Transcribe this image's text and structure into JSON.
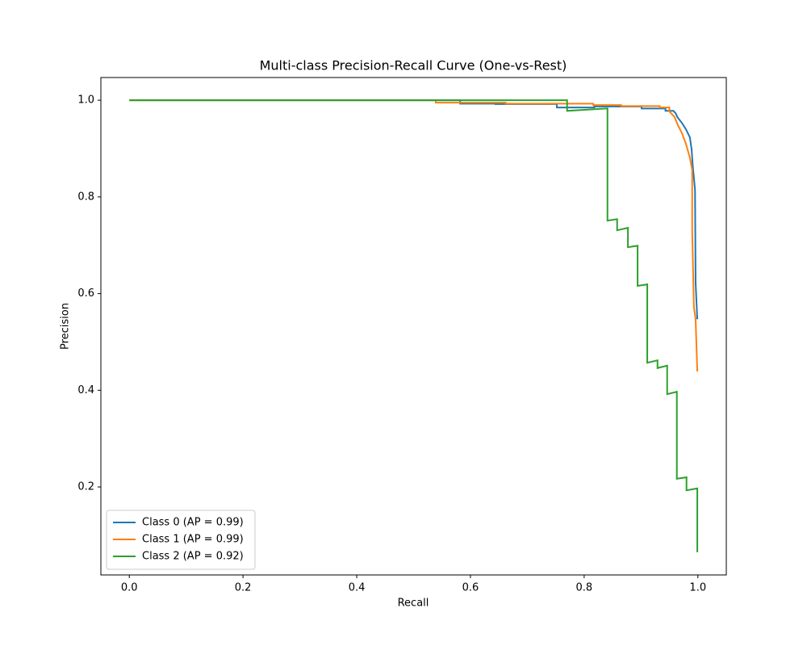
{
  "chart_data": {
    "type": "line",
    "title": "Multi-class Precision-Recall Curve (One-vs-Rest)",
    "xlabel": "Recall",
    "ylabel": "Precision",
    "xlim": [
      -0.05,
      1.05
    ],
    "ylim": [
      0.018,
      1.047
    ],
    "xticks": [
      {
        "value": 0,
        "label": "0.0"
      },
      0.2,
      0.4,
      0.6,
      0.8,
      {
        "value": 1,
        "label": "1.0"
      }
    ],
    "yticks": [
      0.2,
      0.4,
      0.6,
      0.8,
      {
        "value": 1,
        "label": "1.0"
      }
    ],
    "legend": "lower left",
    "series": [
      {
        "name": "Class 0 (AP = 0.99)",
        "color": "#1f77b4",
        "x": [
          0,
          0.582,
          0.582,
          0.644,
          0.644,
          0.752,
          0.752,
          0.818,
          0.818,
          0.901,
          0.901,
          0.943,
          0.943,
          0.957,
          0.961,
          0.964,
          0.972,
          0.979,
          0.986,
          0.989,
          0.991,
          0.995,
          0.996,
          0.999
        ],
        "y": [
          1,
          1,
          0.993,
          0.993,
          0.992,
          0.992,
          0.985,
          0.985,
          0.987,
          0.987,
          0.983,
          0.983,
          0.978,
          0.978,
          0.973,
          0.965,
          0.953,
          0.94,
          0.923,
          0.898,
          0.865,
          0.815,
          0.623,
          0.547
        ]
      },
      {
        "name": "Class 1 (AP = 0.99)",
        "color": "#ff7f0e",
        "x": [
          0,
          0.539,
          0.539,
          0.662,
          0.662,
          0.816,
          0.816,
          0.865,
          0.865,
          0.933,
          0.933,
          0.95,
          0.95,
          0.959,
          0.965,
          0.972,
          0.979,
          0.986,
          0.99,
          0.99,
          0.993,
          0.996,
          0.999
        ],
        "y": [
          1,
          1,
          0.995,
          0.995,
          0.993,
          0.993,
          0.99,
          0.99,
          0.988,
          0.988,
          0.985,
          0.985,
          0.977,
          0.965,
          0.948,
          0.932,
          0.91,
          0.881,
          0.856,
          0.731,
          0.572,
          0.547,
          0.439
        ]
      },
      {
        "name": "Class 2 (AP = 0.92)",
        "color": "#2ca02c",
        "x": [
          0,
          0.77,
          0.77,
          0.841,
          0.841,
          0.858,
          0.858,
          0.877,
          0.877,
          0.894,
          0.894,
          0.911,
          0.911,
          0.929,
          0.929,
          0.946,
          0.946,
          0.963,
          0.963,
          0.98,
          0.98,
          0.999,
          0.999
        ],
        "y": [
          1,
          1,
          0.978,
          0.983,
          0.751,
          0.754,
          0.731,
          0.736,
          0.696,
          0.699,
          0.616,
          0.619,
          0.457,
          0.462,
          0.446,
          0.451,
          0.392,
          0.397,
          0.217,
          0.22,
          0.193,
          0.197,
          0.065
        ]
      }
    ]
  }
}
